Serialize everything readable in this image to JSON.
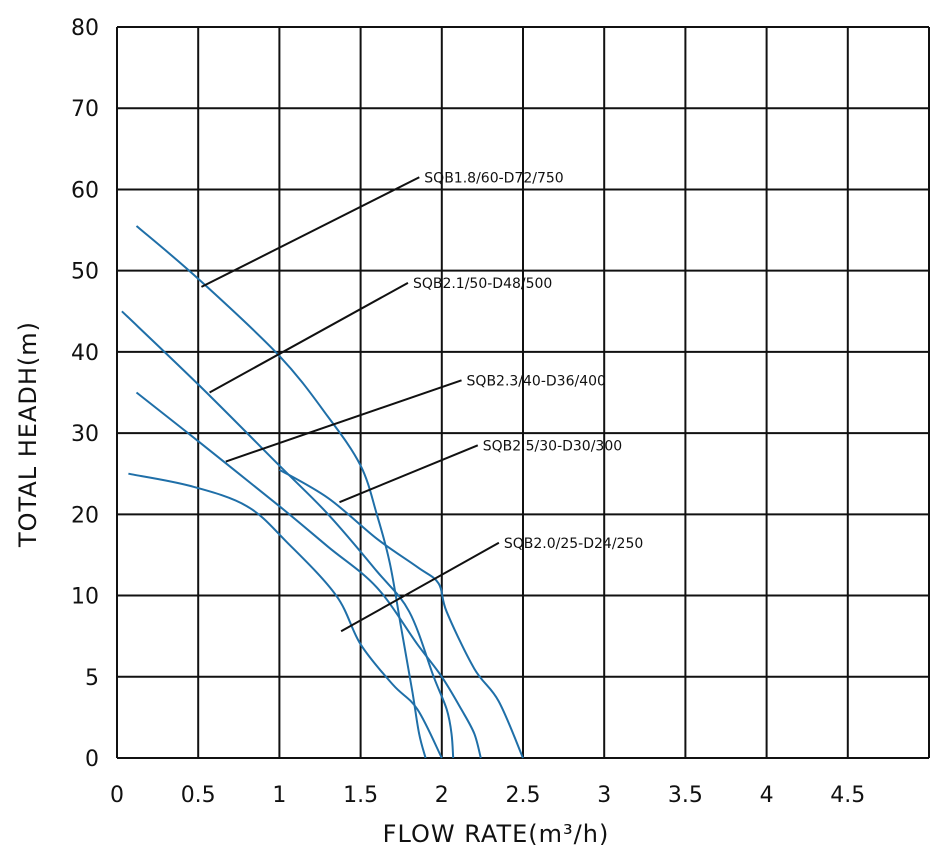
{
  "chart_data": {
    "type": "line",
    "title": "",
    "xlabel": "FLOW RATE(m³/h)",
    "ylabel": "TOTAL HEADH(m)",
    "xlim": [
      0,
      5
    ],
    "x_ticks": [
      "0",
      "0.5",
      "1",
      "1.5",
      "2",
      "2.5",
      "3",
      "3.5",
      "4",
      "4.5"
    ],
    "x_tick_values": [
      0,
      0.5,
      1,
      1.5,
      2,
      2.5,
      3,
      3.5,
      4,
      4.5
    ],
    "y_ticks": [
      "0",
      "5",
      "10",
      "20",
      "30",
      "40",
      "50",
      "60",
      "70",
      "80"
    ],
    "y_tick_values": [
      0,
      5,
      10,
      20,
      30,
      40,
      50,
      60,
      70,
      80
    ],
    "y_scale": "piecewise: 0-5 and 5-10 each span one grid row, 10-80 evenly spaced rows",
    "grid": true,
    "line_color": "#1f6fa8",
    "series": [
      {
        "name": "SQB1.8/60-D72/750",
        "points": [
          [
            0.12,
            55.5
          ],
          [
            0.5,
            49
          ],
          [
            1.0,
            39.5
          ],
          [
            1.3,
            32
          ],
          [
            1.5,
            26
          ],
          [
            1.6,
            20
          ],
          [
            1.68,
            14
          ],
          [
            1.75,
            8
          ],
          [
            1.82,
            4
          ],
          [
            1.86,
            1.5
          ],
          [
            1.9,
            0
          ]
        ]
      },
      {
        "name": "SQB2.1/50-D48/500",
        "points": [
          [
            0.03,
            45
          ],
          [
            0.5,
            36
          ],
          [
            1.0,
            26
          ],
          [
            1.3,
            20
          ],
          [
            1.6,
            13
          ],
          [
            1.8,
            9
          ],
          [
            1.95,
            5
          ],
          [
            2.03,
            3
          ],
          [
            2.06,
            1.5
          ],
          [
            2.07,
            0
          ]
        ]
      },
      {
        "name": "SQB2.3/40-D36/400",
        "points": [
          [
            0.12,
            35
          ],
          [
            0.5,
            29
          ],
          [
            1.0,
            21
          ],
          [
            1.3,
            16
          ],
          [
            1.6,
            11
          ],
          [
            1.85,
            7
          ],
          [
            2.0,
            5
          ],
          [
            2.12,
            3
          ],
          [
            2.2,
            1.5
          ],
          [
            2.24,
            0
          ]
        ]
      },
      {
        "name": "SQB2.5/30-D30/300",
        "points": [
          [
            1.0,
            25.5
          ],
          [
            1.3,
            22
          ],
          [
            1.6,
            17
          ],
          [
            1.85,
            13.5
          ],
          [
            1.98,
            11.5
          ],
          [
            2.03,
            9
          ],
          [
            2.2,
            5.5
          ],
          [
            2.35,
            3.5
          ],
          [
            2.5,
            0
          ]
        ]
      },
      {
        "name": "SQB2.0/25-D24/250",
        "points": [
          [
            0.07,
            25
          ],
          [
            0.45,
            23.5
          ],
          [
            0.8,
            21
          ],
          [
            1.05,
            16.5
          ],
          [
            1.35,
            10
          ],
          [
            1.5,
            7
          ],
          [
            1.7,
            4.5
          ],
          [
            1.85,
            3
          ],
          [
            2.0,
            0
          ]
        ]
      }
    ],
    "annotations": [
      {
        "text": "SQB1.8/60-D72/750",
        "point": [
          0.52,
          48
        ],
        "label_at": [
          1.88,
          61.5
        ]
      },
      {
        "text": "SQB2.1/50-D48/500",
        "point": [
          0.57,
          35
        ],
        "label_at": [
          1.81,
          48.5
        ]
      },
      {
        "text": "SQB2.3/40-D36/400",
        "point": [
          0.67,
          26.5
        ],
        "label_at": [
          2.14,
          36.5
        ]
      },
      {
        "text": "SQB2.5/30-D30/300",
        "point": [
          1.37,
          21.5
        ],
        "label_at": [
          2.24,
          28.5
        ]
      },
      {
        "text": "SQB2.0/25-D24/250",
        "point": [
          1.38,
          7.8
        ],
        "label_at": [
          2.37,
          16.5
        ]
      }
    ]
  }
}
